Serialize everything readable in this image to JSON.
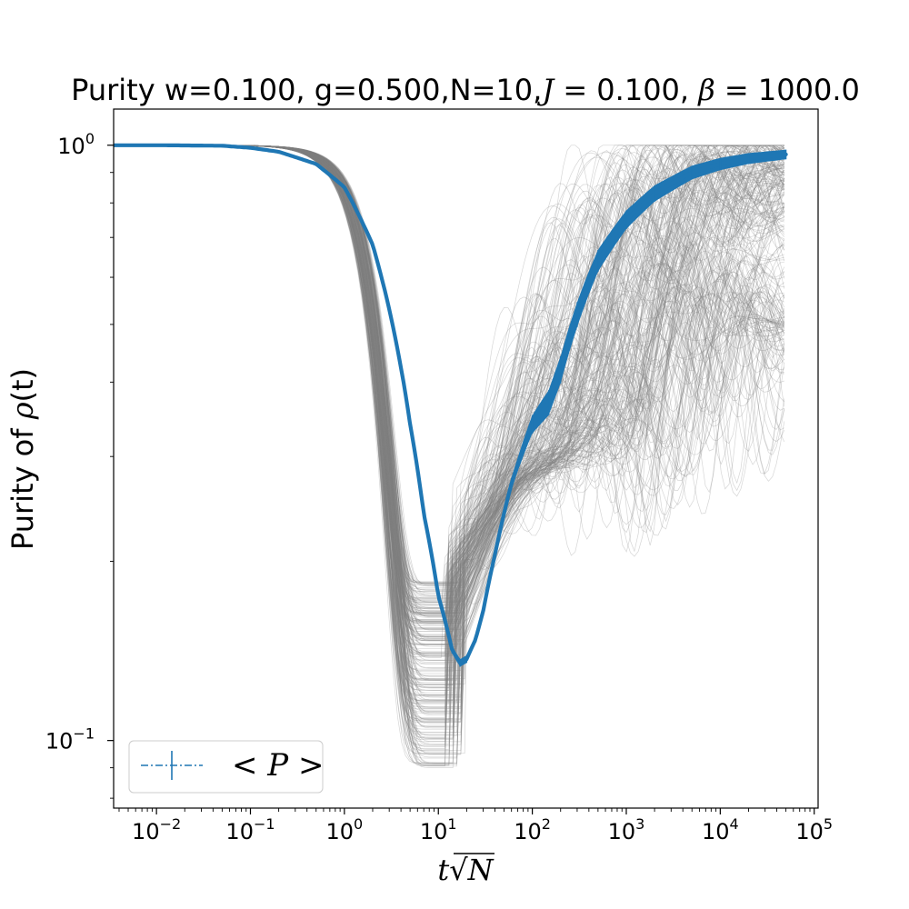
{
  "chart_data": {
    "type": "line",
    "title": "Purity w=0.100, g=0.500,N=10,J = 0.100, β = 1000.0",
    "title_parts": {
      "prefix": "Purity w=0.100, g=0.500,N=10,",
      "J_symbol": "J",
      "J_value": " = 0.100, ",
      "beta_symbol": "β",
      "beta_value": " = 1000.0"
    },
    "xlabel": "t√N",
    "xlabel_parts": {
      "t": "t",
      "sqrt": "√",
      "N": "N"
    },
    "ylabel": "Purity of ρ(t)",
    "ylabel_parts": {
      "prefix": "Purity of ",
      "rho": "ρ",
      "arg": "(t)"
    },
    "xscale": "log",
    "yscale": "log",
    "xlim": [
      0.0035,
      110000
    ],
    "ylim": [
      0.077,
      1.15
    ],
    "grid": false,
    "legend_placement": "lower-left",
    "x_ticks": [
      {
        "value": 0.01,
        "base": "10",
        "exp": "−2"
      },
      {
        "value": 0.1,
        "base": "10",
        "exp": "−1"
      },
      {
        "value": 1,
        "base": "10",
        "exp": "0"
      },
      {
        "value": 10,
        "base": "10",
        "exp": "1"
      },
      {
        "value": 100,
        "base": "10",
        "exp": "2"
      },
      {
        "value": 1000,
        "base": "10",
        "exp": "3"
      },
      {
        "value": 10000,
        "base": "10",
        "exp": "4"
      },
      {
        "value": 100000,
        "base": "10",
        "exp": "5"
      }
    ],
    "y_ticks": [
      {
        "value": 1,
        "base": "10",
        "exp": "0"
      },
      {
        "value": 0.1,
        "base": "10",
        "exp": "−1"
      }
    ],
    "legend": [
      {
        "label": "< P >",
        "color": "#1f77b4",
        "style": "dash-dot with errorbar"
      }
    ],
    "series": [
      {
        "name": "< P >",
        "color": "#1f77b4",
        "x": [
          0.0035,
          0.01,
          0.05,
          0.1,
          0.2,
          0.5,
          1,
          2,
          3,
          5,
          7,
          10,
          14,
          17,
          20,
          25,
          30,
          40,
          60,
          100,
          150,
          200,
          300,
          500,
          1000,
          2000,
          5000,
          10000,
          20000,
          50000
        ],
        "y": [
          1.0,
          1.0,
          0.998,
          0.99,
          0.975,
          0.93,
          0.85,
          0.68,
          0.53,
          0.34,
          0.24,
          0.175,
          0.142,
          0.135,
          0.137,
          0.148,
          0.165,
          0.205,
          0.27,
          0.34,
          0.37,
          0.42,
          0.52,
          0.64,
          0.75,
          0.83,
          0.9,
          0.93,
          0.95,
          0.965
        ],
        "error": [
          0,
          0,
          0,
          0,
          0,
          0.001,
          0.002,
          0.002,
          0.002,
          0.002,
          0.002,
          0.002,
          0.002,
          0.002,
          0.002,
          0.002,
          0.003,
          0.004,
          0.006,
          0.012,
          0.018,
          0.022,
          0.025,
          0.027,
          0.027,
          0.026,
          0.024,
          0.022,
          0.02,
          0.018
        ]
      }
    ],
    "ensemble": {
      "color": "#808080",
      "realizations": 300,
      "trajectories_plateau_values": [
        0.5,
        1.0
      ],
      "dip_range": [
        0.085,
        0.19
      ],
      "dip_location": 17
    }
  }
}
